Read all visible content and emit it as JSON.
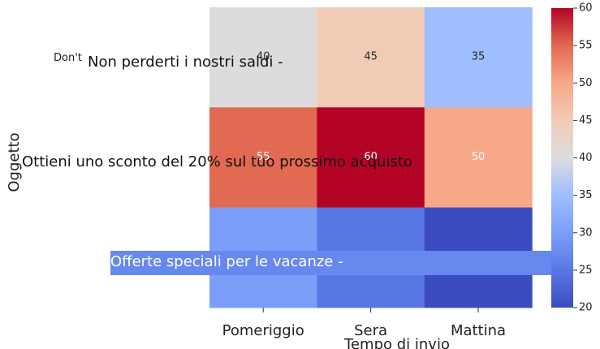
{
  "chart_data": {
    "type": "heatmap",
    "title": "",
    "xlabel": "Tempo di invio",
    "ylabel": "Oggetto",
    "x_categories": [
      "Pomeriggio",
      "Sera",
      "Mattina"
    ],
    "y_categories": [
      "Non perderti i nostri saldi -",
      "Ottieni uno sconto del 20% sul tuo prossimo acquisto",
      "Offerte speciali per le vacanze -"
    ],
    "y_label_overflow_text": "Don't",
    "values": [
      [
        40,
        45,
        35
      ],
      [
        55,
        60,
        50
      ],
      [
        30,
        25,
        20
      ]
    ],
    "cell_labels": [
      [
        "40",
        "45",
        "35"
      ],
      [
        "55",
        "60",
        "50"
      ],
      [
        "",
        "",
        ""
      ]
    ],
    "colorscale": "coolwarm",
    "vmin": 20,
    "vmax": 60,
    "colorbar_ticks": [
      "20",
      "25",
      "30",
      "35",
      "40",
      "45",
      "50",
      "55",
      "60"
    ],
    "label_highlight_color": "#6788ee",
    "legend": "colorbar-right",
    "grid": false
  }
}
